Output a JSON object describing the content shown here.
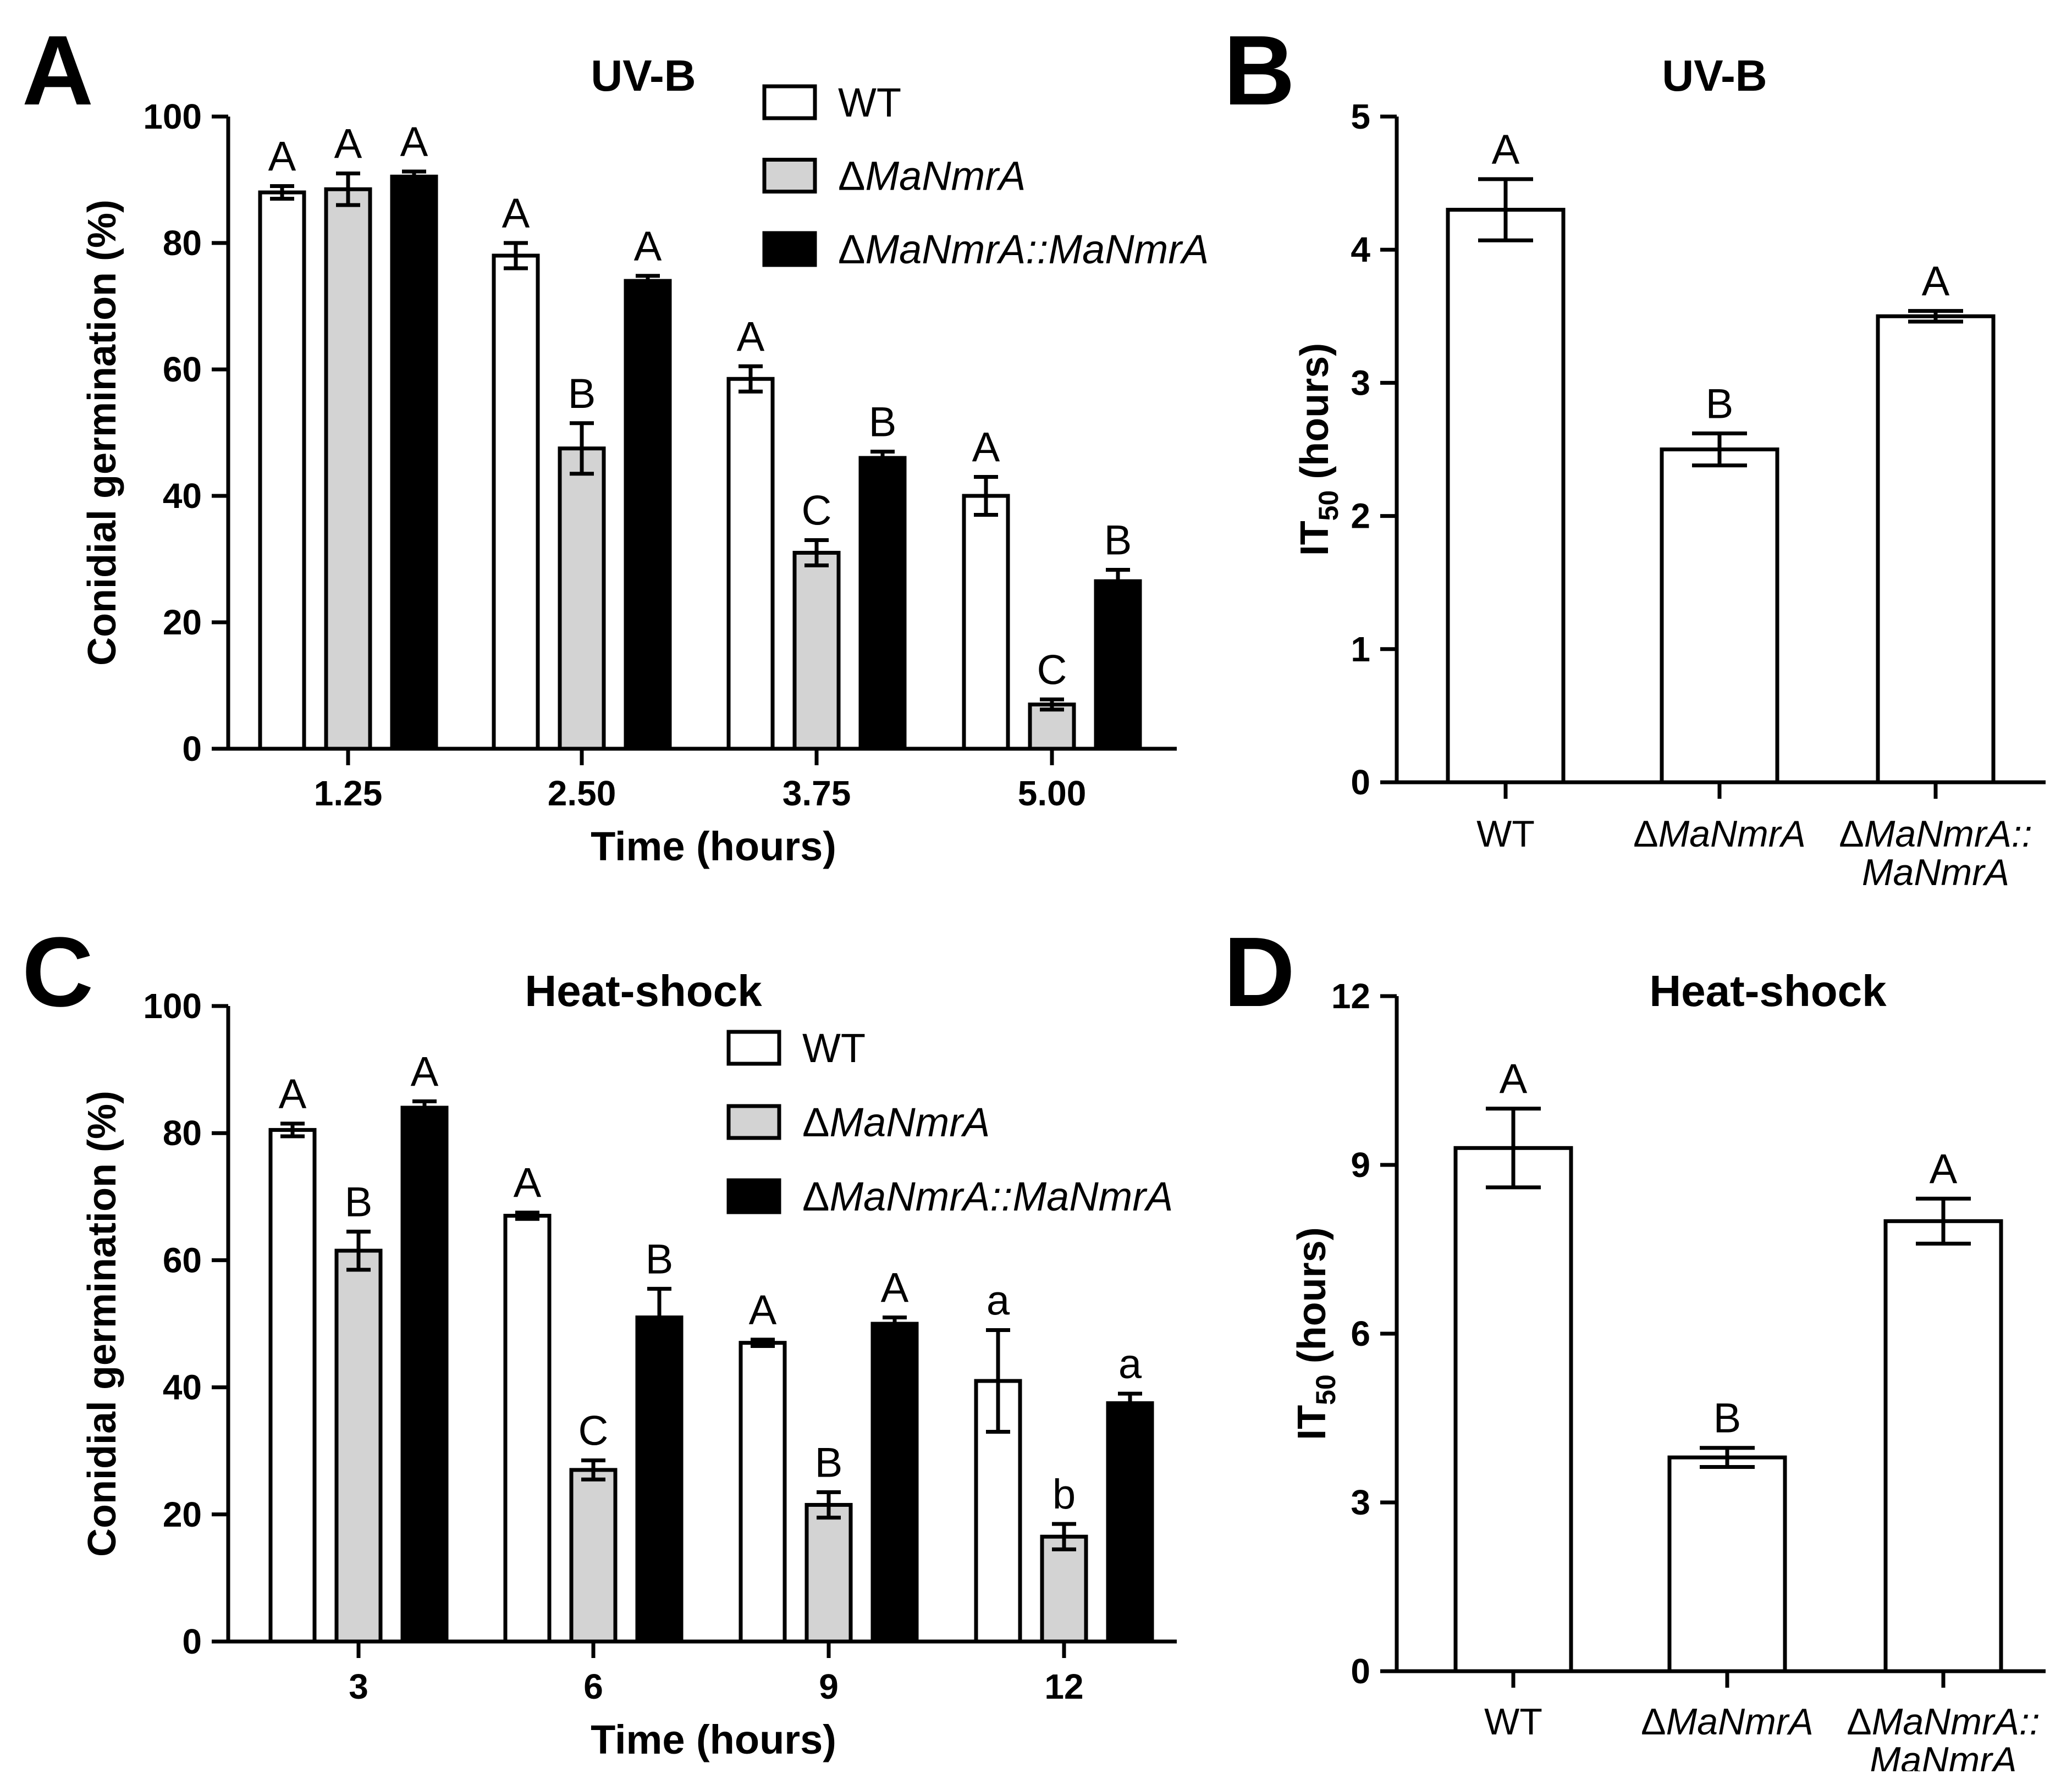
{
  "chart_data": [
    {
      "id": "A",
      "panel_label": "A",
      "type": "bar",
      "title": "UV-B",
      "xlabel": "Time (hours)",
      "ylabel": "Conidial germination (%)",
      "ylim": [
        0,
        100
      ],
      "yticks": [
        0,
        20,
        40,
        60,
        80,
        100
      ],
      "categories": [
        "1.25",
        "2.50",
        "3.75",
        "5.00"
      ],
      "legend_position": "top-right",
      "series": [
        {
          "name": "WT",
          "name_prefix": "",
          "name_italic": "",
          "color": "#ffffff",
          "values": [
            88,
            78,
            58.5,
            40
          ],
          "errors": [
            1,
            2,
            2,
            3
          ],
          "labels": [
            "A",
            "A",
            "A",
            "A"
          ]
        },
        {
          "name": "ΔMaNmrA",
          "name_prefix": "Δ",
          "name_italic": "MaNmrA",
          "color": "#d3d3d3",
          "values": [
            88.5,
            47.5,
            31,
            7
          ],
          "errors": [
            2.5,
            4,
            2,
            0.8
          ],
          "labels": [
            "A",
            "B",
            "C",
            "C"
          ]
        },
        {
          "name": "ΔMaNmrA::MaNmrA",
          "name_prefix": "Δ",
          "name_italic": "MaNmrA::MaNmrA",
          "color": "#000000",
          "values": [
            90.5,
            74,
            46,
            26.5
          ],
          "errors": [
            0.8,
            0.8,
            1,
            1.8
          ],
          "labels": [
            "A",
            "A",
            "B",
            "B"
          ]
        }
      ]
    },
    {
      "id": "B",
      "panel_label": "B",
      "type": "bar",
      "title": "UV-B",
      "ylabel": "IT50 (hours)",
      "ylabel_main": "IT",
      "ylabel_sub": "50",
      "ylabel_rest": " (hours)",
      "ylim": [
        0,
        5
      ],
      "yticks": [
        0,
        1,
        2,
        3,
        4,
        5
      ],
      "categories": [
        {
          "lines": [
            "WT"
          ],
          "prefix": "",
          "italic": false
        },
        {
          "lines": [
            "MaNmrA"
          ],
          "prefix": "Δ",
          "italic": true
        },
        {
          "lines": [
            "MaNmrA::",
            "MaNmrA"
          ],
          "prefix": "Δ",
          "italic": true
        }
      ],
      "values": [
        4.3,
        2.5,
        3.5
      ],
      "errors": [
        0.23,
        0.12,
        0.04
      ],
      "labels": [
        "A",
        "B",
        "A"
      ]
    },
    {
      "id": "C",
      "panel_label": "C",
      "type": "bar",
      "title": "Heat-shock",
      "xlabel": "Time (hours)",
      "ylabel": "Conidial germination (%)",
      "ylim": [
        0,
        100
      ],
      "yticks": [
        0,
        20,
        40,
        60,
        80,
        100
      ],
      "categories": [
        "3",
        "6",
        "9",
        "12"
      ],
      "legend_position": "top-right",
      "series": [
        {
          "name": "WT",
          "name_prefix": "",
          "name_italic": "",
          "color": "#ffffff",
          "values": [
            80.5,
            67,
            47,
            41
          ],
          "errors": [
            1,
            0.5,
            0.5,
            8
          ],
          "labels": [
            "A",
            "A",
            "A",
            "a"
          ]
        },
        {
          "name": "ΔMaNmrA",
          "name_prefix": "Δ",
          "name_italic": "MaNmrA",
          "color": "#d3d3d3",
          "values": [
            61.5,
            27,
            21.5,
            16.5
          ],
          "errors": [
            3,
            1.5,
            2,
            2
          ],
          "labels": [
            "B",
            "C",
            "B",
            "b"
          ]
        },
        {
          "name": "ΔMaNmrA::MaNmrA",
          "name_prefix": "Δ",
          "name_italic": "MaNmrA::MaNmrA",
          "color": "#000000",
          "values": [
            84,
            51,
            50,
            37.5
          ],
          "errors": [
            1,
            4.5,
            1,
            1.5
          ],
          "labels": [
            "A",
            "B",
            "A",
            "a"
          ]
        }
      ]
    },
    {
      "id": "D",
      "panel_label": "D",
      "type": "bar",
      "title": "Heat-shock",
      "ylabel": "IT50 (hours)",
      "ylabel_main": "IT",
      "ylabel_sub": "50",
      "ylabel_rest": " (hours)",
      "ylim": [
        0,
        12
      ],
      "yticks": [
        0,
        3,
        6,
        9,
        12
      ],
      "categories": [
        {
          "lines": [
            "WT"
          ],
          "prefix": "",
          "italic": false
        },
        {
          "lines": [
            "MaNmrA"
          ],
          "prefix": "Δ",
          "italic": true
        },
        {
          "lines": [
            "MaNmrA::",
            "MaNmrA"
          ],
          "prefix": "Δ",
          "italic": true
        }
      ],
      "values": [
        9.3,
        3.8,
        8.0
      ],
      "errors": [
        0.7,
        0.17,
        0.4
      ],
      "labels": [
        "A",
        "B",
        "A"
      ]
    }
  ]
}
